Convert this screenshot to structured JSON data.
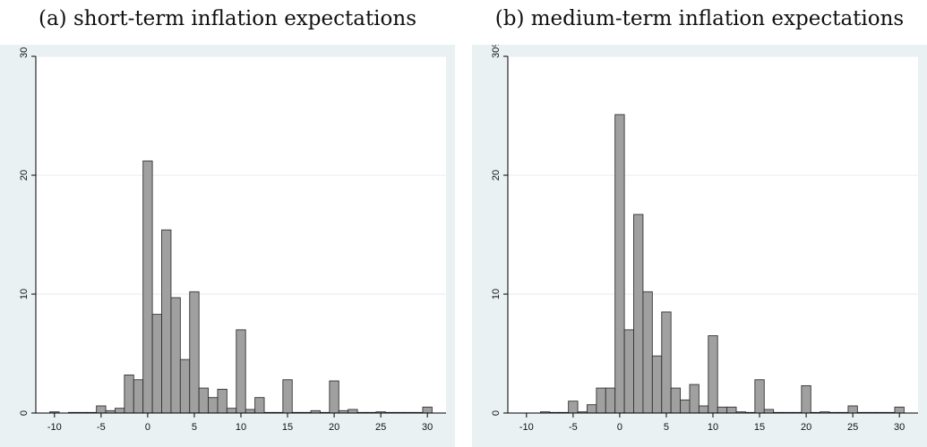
{
  "chart_data": [
    {
      "type": "bar",
      "title": "(a) short-term inflation expectations",
      "xlabel": "",
      "ylabel": "",
      "xlim": [
        -12,
        32
      ],
      "ylim": [
        0,
        30
      ],
      "bin_width": 1,
      "y_unit": "%",
      "grid": true,
      "x_ticks": [
        "-10",
        "-5",
        "0",
        "5",
        "10",
        "15",
        "20",
        "25",
        "30"
      ],
      "y_ticks": [
        "0",
        "10",
        "20",
        "30 %"
      ],
      "x": [
        -10,
        -8,
        -7,
        -6,
        -5,
        -4,
        -3,
        -2,
        -1,
        0,
        1,
        2,
        3,
        4,
        5,
        6,
        7,
        8,
        9,
        10,
        11,
        12,
        13,
        14,
        15,
        16,
        17,
        18,
        19,
        20,
        21,
        22,
        23,
        24,
        25,
        26,
        27,
        28,
        29,
        30
      ],
      "values": [
        0.1,
        0.05,
        0.05,
        0.05,
        0.6,
        0.2,
        0.4,
        3.2,
        2.8,
        21.2,
        8.3,
        15.4,
        9.7,
        4.5,
        10.2,
        2.1,
        1.3,
        2.0,
        0.4,
        7.0,
        0.3,
        1.3,
        0.05,
        0.05,
        2.8,
        0.05,
        0.05,
        0.2,
        0.05,
        2.7,
        0.2,
        0.3,
        0.05,
        0.05,
        0.1,
        0.05,
        0.05,
        0.05,
        0.05,
        0.5
      ]
    },
    {
      "type": "bar",
      "title": "(b) medium-term inflation expectations",
      "xlabel": "",
      "ylabel": "",
      "xlim": [
        -12,
        32
      ],
      "ylim": [
        0,
        30
      ],
      "bin_width": 1,
      "y_unit": "%",
      "grid": true,
      "x_ticks": [
        "-10",
        "-5",
        "0",
        "5",
        "10",
        "15",
        "20",
        "25",
        "30"
      ],
      "y_ticks": [
        "0",
        "10",
        "20",
        "30%"
      ],
      "x": [
        -8,
        -7,
        -6,
        -5,
        -4,
        -3,
        -2,
        -1,
        0,
        1,
        2,
        3,
        4,
        5,
        6,
        7,
        8,
        9,
        10,
        11,
        12,
        13,
        14,
        15,
        16,
        17,
        18,
        19,
        20,
        21,
        22,
        23,
        24,
        25,
        26,
        27,
        28,
        29,
        30
      ],
      "values": [
        0.1,
        0.05,
        0.05,
        1.0,
        0.1,
        0.7,
        2.1,
        2.1,
        25.1,
        7.0,
        16.7,
        10.2,
        4.8,
        8.5,
        2.1,
        1.1,
        2.4,
        0.6,
        6.5,
        0.5,
        0.5,
        0.1,
        0.05,
        2.8,
        0.3,
        0.05,
        0.05,
        0.05,
        2.3,
        0.05,
        0.1,
        0.05,
        0.05,
        0.6,
        0.05,
        0.05,
        0.05,
        0.05,
        0.5
      ]
    }
  ]
}
